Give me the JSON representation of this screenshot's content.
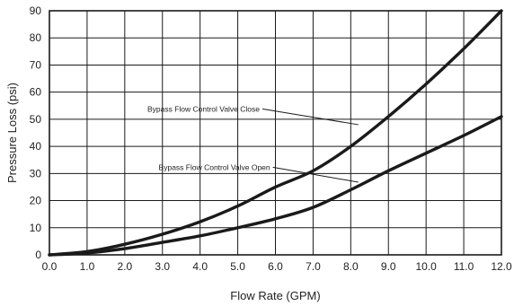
{
  "chart_data": {
    "type": "line",
    "title": "",
    "xlabel": "Flow Rate (GPM)",
    "ylabel": "Pressure Loss (psi)",
    "xlim": [
      0,
      12
    ],
    "ylim": [
      0,
      90
    ],
    "x_ticks": [
      "0.0",
      "1.0",
      "2.0",
      "3.0",
      "4.0",
      "5.0",
      "6.0",
      "7.0",
      "8.0",
      "9.0",
      "10.0",
      "11.0",
      "12.0"
    ],
    "y_ticks": [
      "0",
      "10",
      "20",
      "30",
      "40",
      "50",
      "60",
      "70",
      "80",
      "90"
    ],
    "grid": true,
    "legend": "none",
    "line_color": "#1a1a1a",
    "x": [
      0,
      1,
      2,
      3,
      4,
      5,
      6,
      7,
      8,
      9,
      10,
      11,
      12
    ],
    "series": [
      {
        "name": "Bypass Flow Control Valve Close",
        "values": [
          0,
          1.2,
          3.9,
          7.6,
          12.2,
          18.0,
          25.0,
          31.0,
          40.0,
          51.0,
          63.0,
          76.0,
          90.0
        ]
      },
      {
        "name": "Bypass Flow Control Valve Open",
        "values": [
          0,
          0.7,
          2.3,
          4.6,
          7.0,
          10.0,
          13.3,
          17.5,
          24.0,
          31.0,
          37.5,
          44.0,
          51.0
        ]
      }
    ],
    "annotations": [
      {
        "text": "Bypass Flow Control Valve Close",
        "series": 0,
        "text_at": [
          2.6,
          52.8
        ],
        "arrow_to": [
          8.2,
          48.0
        ]
      },
      {
        "text": "Bypass Flow Control Valve Open",
        "series": 1,
        "text_at": [
          2.9,
          31.3
        ],
        "arrow_to": [
          8.2,
          26.8
        ]
      }
    ]
  }
}
